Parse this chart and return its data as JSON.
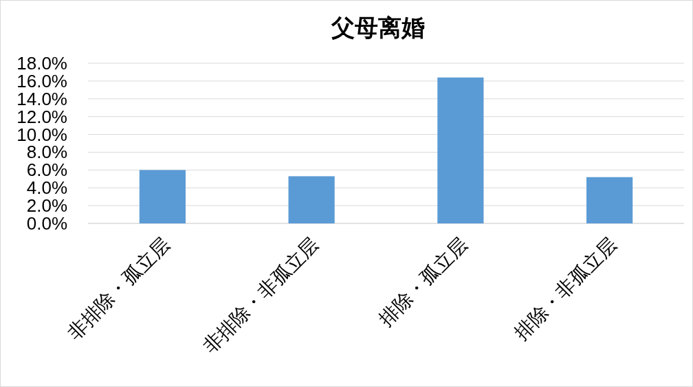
{
  "chart_data": {
    "type": "bar",
    "title": "父母离婚",
    "categories": [
      "非排除・孤立层",
      "非排除・非孤立层",
      "排除・孤立层",
      "排除・非孤立层"
    ],
    "values": [
      6.0,
      5.3,
      16.4,
      5.2
    ],
    "color": "#5b9bd5",
    "ylim": [
      0,
      18
    ],
    "yticks": [
      {
        "value": 0,
        "label": "0.0%"
      },
      {
        "value": 2,
        "label": "2.0%"
      },
      {
        "value": 4,
        "label": "4.0%"
      },
      {
        "value": 6,
        "label": "6.0%"
      },
      {
        "value": 8,
        "label": "8.0%"
      },
      {
        "value": 10,
        "label": "10.0%"
      },
      {
        "value": 12,
        "label": "12.0%"
      },
      {
        "value": 14,
        "label": "14.0%"
      },
      {
        "value": 16,
        "label": "16.0%"
      },
      {
        "value": 18,
        "label": "18.0%"
      }
    ],
    "grid": "y"
  }
}
